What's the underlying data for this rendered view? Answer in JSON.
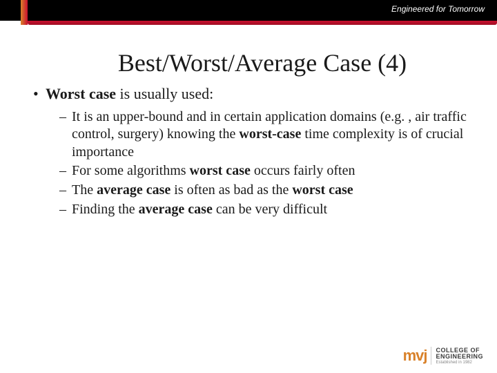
{
  "banner": {
    "tagline": "Engineered for Tomorrow",
    "banner_bg": "#000000",
    "banner_text_color": "#ffffff",
    "red_bar_color": "#c8102e",
    "accent_orange": "#d9822b"
  },
  "slide": {
    "title": "Best/Worst/Average Case (4)",
    "bullet_main_prefix": "Worst case",
    "bullet_main_rest": " is usually used:",
    "sub_bullets": [
      {
        "parts": [
          {
            "text": "It is an upper-bound and in certain application domains (e.g. , air traffic control, surgery) knowing the ",
            "bold": false
          },
          {
            "text": "worst-case",
            "bold": true
          },
          {
            "text": " time complexity is of crucial importance",
            "bold": false
          }
        ]
      },
      {
        "parts": [
          {
            "text": "For some algorithms ",
            "bold": false
          },
          {
            "text": "worst case",
            "bold": true
          },
          {
            "text": " occurs fairly often",
            "bold": false
          }
        ]
      },
      {
        "parts": [
          {
            "text": "The ",
            "bold": false
          },
          {
            "text": "average case",
            "bold": true
          },
          {
            "text": " is often as bad as the ",
            "bold": false
          },
          {
            "text": "worst case",
            "bold": true
          }
        ]
      },
      {
        "parts": [
          {
            "text": "Finding the ",
            "bold": false
          },
          {
            "text": "average case",
            "bold": true
          },
          {
            "text": " can be very difficult",
            "bold": false
          }
        ]
      }
    ]
  },
  "logo": {
    "brand": "mvj",
    "line1": "COLLEGE OF",
    "line2": "ENGINEERING",
    "est": "Established in 1982"
  },
  "style": {
    "title_fontsize": 36,
    "body_fontsize": 22,
    "sub_fontsize": 20,
    "text_color": "#1a1a1a",
    "background": "#ffffff",
    "font_family": "Times New Roman"
  }
}
